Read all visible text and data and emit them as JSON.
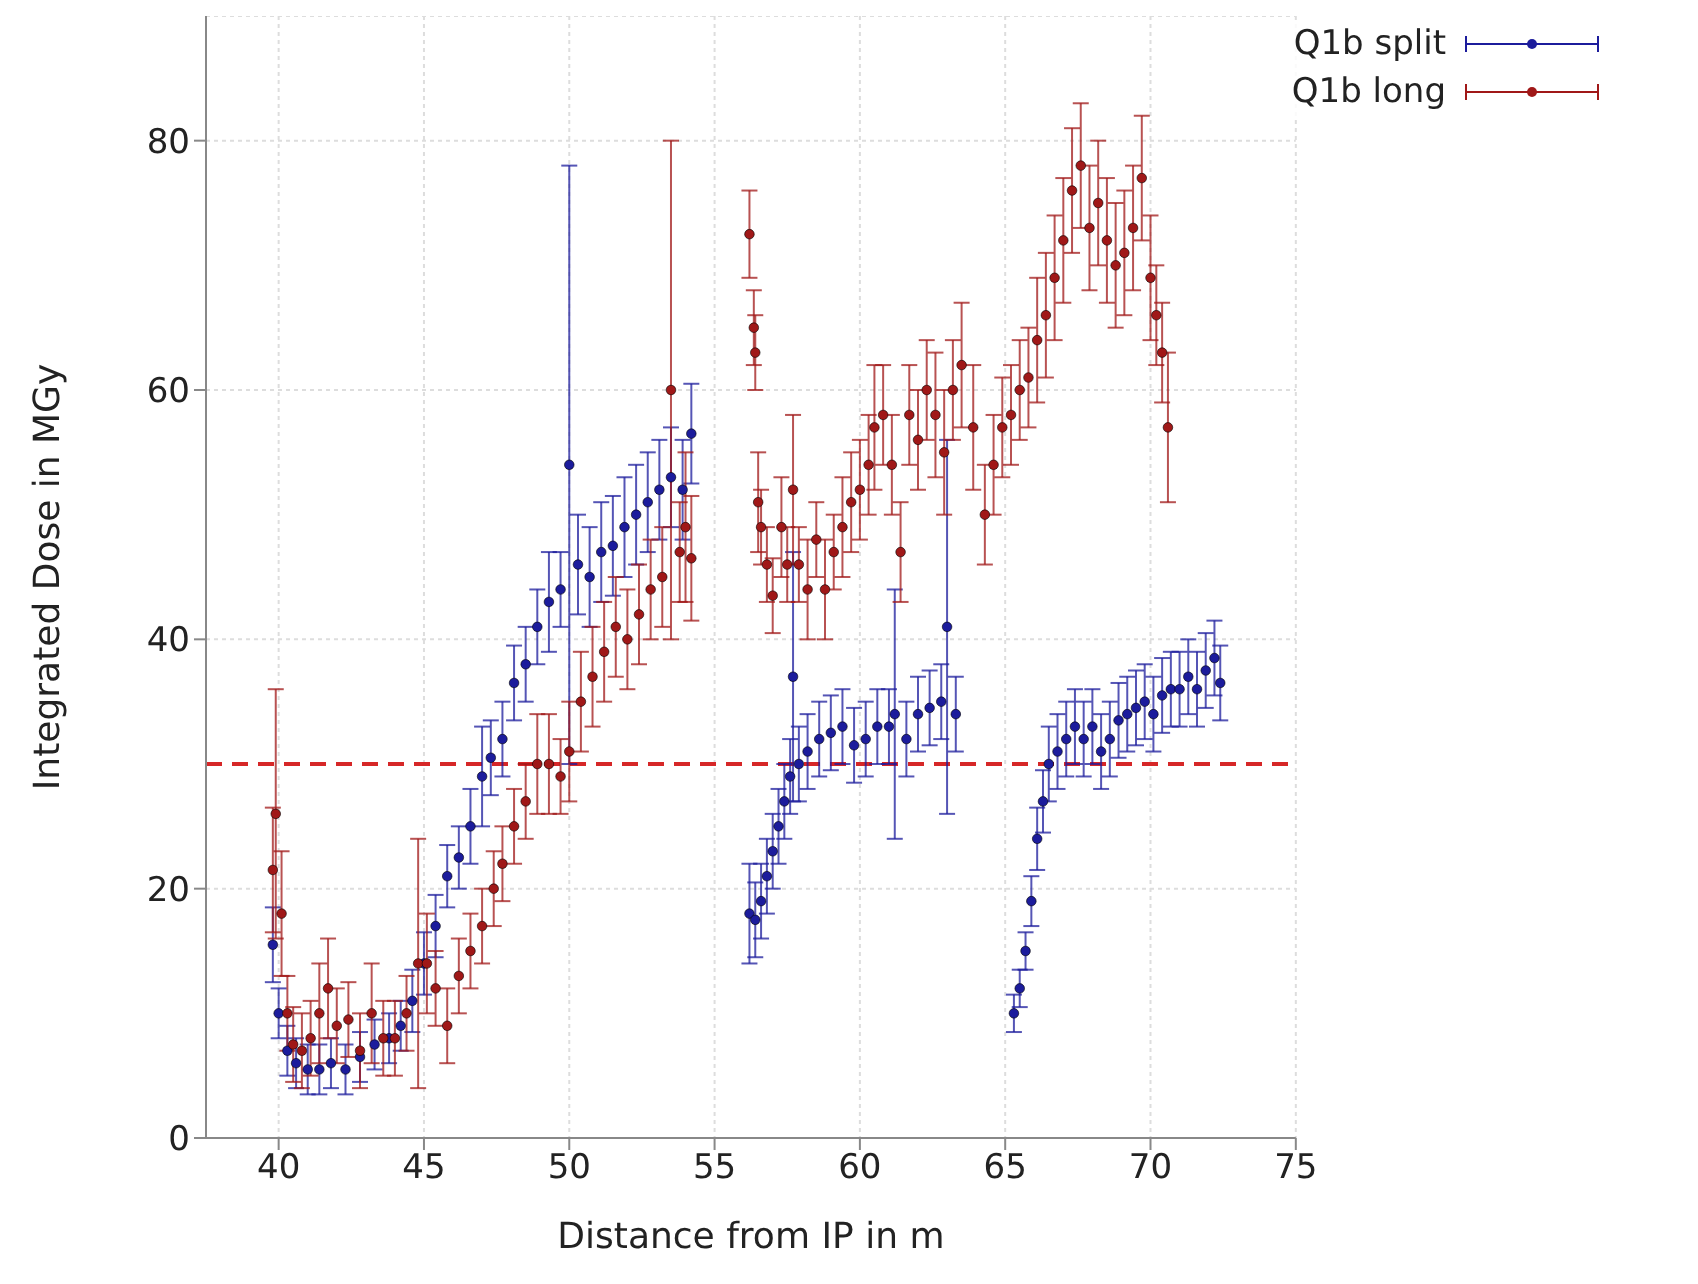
{
  "chart_data": {
    "type": "scatter",
    "xlabel": "Distance from IP in m",
    "ylabel": "Integrated Dose in MGy",
    "xlim": [
      37.5,
      75
    ],
    "xticks": [
      40,
      45,
      50,
      55,
      60,
      65,
      70,
      75
    ],
    "ylim": [
      0,
      90
    ],
    "yticks": [
      0,
      20,
      40,
      60,
      80
    ],
    "grid": true,
    "legend": "top right",
    "marker": "circle",
    "ref_lines": [
      {
        "axis": "y",
        "value": 30,
        "color": "#d62728",
        "line_style": "dashed"
      }
    ],
    "series": [
      {
        "name": "Q1b split",
        "color": "#1c1c9c",
        "x": [
          39.8,
          40.0,
          40.3,
          40.6,
          41.0,
          41.4,
          41.8,
          42.3,
          42.8,
          43.3,
          43.8,
          44.2,
          44.6,
          45.0,
          45.4,
          45.8,
          46.2,
          46.6,
          47.0,
          47.3,
          47.7,
          48.1,
          48.5,
          48.9,
          49.3,
          49.7,
          50.0,
          50.3,
          50.7,
          51.1,
          51.5,
          51.9,
          52.3,
          52.7,
          53.1,
          53.5,
          53.9,
          54.2,
          56.2,
          56.4,
          56.6,
          56.8,
          57.0,
          57.2,
          57.4,
          57.6,
          57.7,
          57.9,
          58.2,
          58.6,
          59.0,
          59.4,
          59.8,
          60.2,
          60.6,
          61.0,
          61.2,
          61.6,
          62.0,
          62.4,
          62.8,
          63.0,
          63.3,
          65.3,
          65.5,
          65.7,
          65.9,
          66.1,
          66.3,
          66.5,
          66.8,
          67.1,
          67.4,
          67.7,
          68.0,
          68.3,
          68.6,
          68.9,
          69.2,
          69.5,
          69.8,
          70.1,
          70.4,
          70.7,
          71.0,
          71.3,
          71.6,
          71.9,
          72.2,
          72.4
        ],
        "values": [
          15.5,
          10,
          7,
          6,
          5.5,
          5.5,
          6,
          5.5,
          6.5,
          7.5,
          8,
          9,
          11,
          14,
          17,
          21,
          22.5,
          25,
          29,
          30.5,
          32,
          36.5,
          38,
          41,
          43,
          44,
          54,
          46,
          45,
          47,
          47.5,
          49,
          50,
          51,
          52,
          53,
          52,
          56.5,
          18,
          17.5,
          19,
          21,
          23,
          25,
          27,
          29,
          37,
          30,
          31,
          32,
          32.5,
          33,
          31.5,
          32,
          33,
          33,
          34,
          32,
          34,
          34.5,
          35,
          41,
          34,
          10,
          12,
          15,
          19,
          24,
          27,
          30,
          31,
          32,
          33,
          32,
          33,
          31,
          32,
          33.5,
          34,
          34.5,
          35,
          34,
          35.5,
          36,
          36,
          37,
          36,
          37.5,
          38.5,
          36.5
        ],
        "errors": [
          3,
          2,
          2,
          2,
          2,
          2,
          2,
          2,
          2,
          2,
          2,
          2,
          2.5,
          2.5,
          2.5,
          2.5,
          2.5,
          3,
          4,
          3,
          3,
          3,
          3,
          3,
          4,
          3,
          24,
          4,
          4,
          4,
          4,
          4,
          4,
          4,
          4,
          4,
          4,
          4,
          4,
          3,
          3,
          3,
          3,
          3,
          3,
          3,
          10,
          3,
          3,
          3,
          3,
          3,
          3,
          3,
          3,
          3,
          10,
          3,
          3,
          3,
          3,
          15,
          3,
          1.5,
          1.5,
          1.5,
          2,
          2.5,
          2.5,
          3,
          3,
          3,
          3,
          3,
          3,
          3,
          3,
          3,
          3,
          3,
          3,
          3,
          3,
          3,
          3,
          3,
          3,
          3,
          3,
          3
        ]
      },
      {
        "name": "Q1b long",
        "color": "#a01818",
        "x": [
          39.8,
          39.9,
          40.1,
          40.3,
          40.5,
          40.8,
          41.1,
          41.4,
          41.7,
          42.0,
          42.4,
          42.8,
          43.2,
          43.6,
          44.0,
          44.4,
          44.8,
          45.1,
          45.4,
          45.8,
          46.2,
          46.6,
          47.0,
          47.4,
          47.7,
          48.1,
          48.5,
          48.9,
          49.3,
          49.7,
          50.0,
          50.4,
          50.8,
          51.2,
          51.6,
          52.0,
          52.4,
          52.8,
          53.2,
          53.5,
          53.8,
          54.0,
          54.2,
          56.2,
          56.35,
          56.4,
          56.5,
          56.6,
          56.8,
          57.0,
          57.3,
          57.5,
          57.7,
          57.9,
          58.2,
          58.5,
          58.8,
          59.1,
          59.4,
          59.7,
          60.0,
          60.3,
          60.5,
          60.8,
          61.1,
          61.4,
          61.7,
          62.0,
          62.3,
          62.6,
          62.9,
          63.2,
          63.5,
          63.9,
          64.3,
          64.6,
          64.9,
          65.2,
          65.5,
          65.8,
          66.1,
          66.4,
          66.7,
          67.0,
          67.3,
          67.6,
          67.9,
          68.2,
          68.5,
          68.8,
          69.1,
          69.4,
          69.7,
          70.0,
          70.2,
          70.4,
          70.6
        ],
        "values": [
          21.5,
          26,
          18,
          10,
          7.5,
          7,
          8,
          10,
          12,
          9,
          9.5,
          7,
          10,
          8,
          8,
          10,
          14,
          14,
          12,
          9,
          13,
          15,
          17,
          20,
          22,
          25,
          27,
          30,
          30,
          29,
          31,
          35,
          37,
          39,
          41,
          40,
          42,
          44,
          45,
          60,
          47,
          49,
          46.5,
          72.5,
          65,
          63,
          51,
          49,
          46,
          43.5,
          49,
          46,
          52,
          46,
          44,
          48,
          44,
          47,
          49,
          51,
          52,
          54,
          57,
          58,
          54,
          47,
          58,
          56,
          60,
          58,
          55,
          60,
          62,
          57,
          50,
          54,
          57,
          58,
          60,
          61,
          64,
          66,
          69,
          72,
          76,
          78,
          73,
          75,
          72,
          70,
          71,
          73,
          77,
          69,
          66,
          63,
          57
        ],
        "errors": [
          5,
          10,
          5,
          3,
          3,
          3,
          3,
          4,
          4,
          3,
          3,
          3,
          4,
          3,
          3,
          3,
          10,
          4,
          3,
          3,
          3,
          3,
          3,
          3,
          3,
          3,
          3,
          4,
          4,
          3,
          4,
          4,
          4,
          4,
          4,
          4,
          4,
          4,
          4,
          20,
          4,
          6,
          5,
          3.5,
          3,
          3,
          4,
          3,
          3,
          3,
          4,
          3,
          6,
          3,
          4,
          3,
          4,
          3,
          4,
          4,
          4,
          4,
          5,
          4,
          4,
          4,
          4,
          4,
          4,
          5,
          5,
          4,
          5,
          5,
          4,
          4,
          4,
          4,
          4,
          4,
          5,
          5,
          5,
          5,
          5,
          5,
          5,
          5,
          5,
          5,
          5,
          5,
          5,
          5,
          4,
          4,
          6
        ]
      }
    ]
  }
}
